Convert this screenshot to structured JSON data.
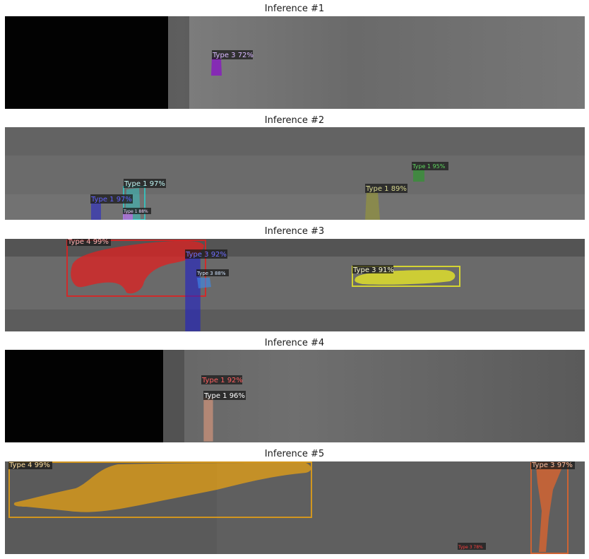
{
  "panels": [
    {
      "title": "Inference #1",
      "detections": [
        {
          "label": "Type 3 72%",
          "color": "#8a12c8"
        }
      ]
    },
    {
      "title": "Inference #2",
      "detections": [
        {
          "label": "Type 1 97%",
          "color": "#2ad4d0"
        },
        {
          "label": "Type 1 97%",
          "color": "#2828c8"
        },
        {
          "label": "Type 1 88%",
          "color": "#c864e6"
        },
        {
          "label": "Type 1 89%",
          "color": "#a0a028"
        },
        {
          "label": "Type 1 95%",
          "color": "#20a020"
        }
      ]
    },
    {
      "title": "Inference #3",
      "detections": [
        {
          "label": "Type 4 99%",
          "color": "#e02020"
        },
        {
          "label": "Type 3 92%",
          "color": "#2020c8"
        },
        {
          "label": "Type 3 88%",
          "color": "#3c8cf0"
        },
        {
          "label": "Type 3 91%",
          "color": "#e6e628"
        }
      ]
    },
    {
      "title": "Inference #4",
      "detections": [
        {
          "label": "Type 1 92%",
          "color": "#e03c3c"
        },
        {
          "label": "Type 1 96%",
          "color": "#f0a080"
        }
      ]
    },
    {
      "title": "Inference #5",
      "detections": [
        {
          "label": "Type 4 99%",
          "color": "#e6a014"
        },
        {
          "label": "Type 3 97%",
          "color": "#e0642c"
        },
        {
          "label": "Type 3 78%",
          "color": "#e02020"
        }
      ]
    }
  ]
}
